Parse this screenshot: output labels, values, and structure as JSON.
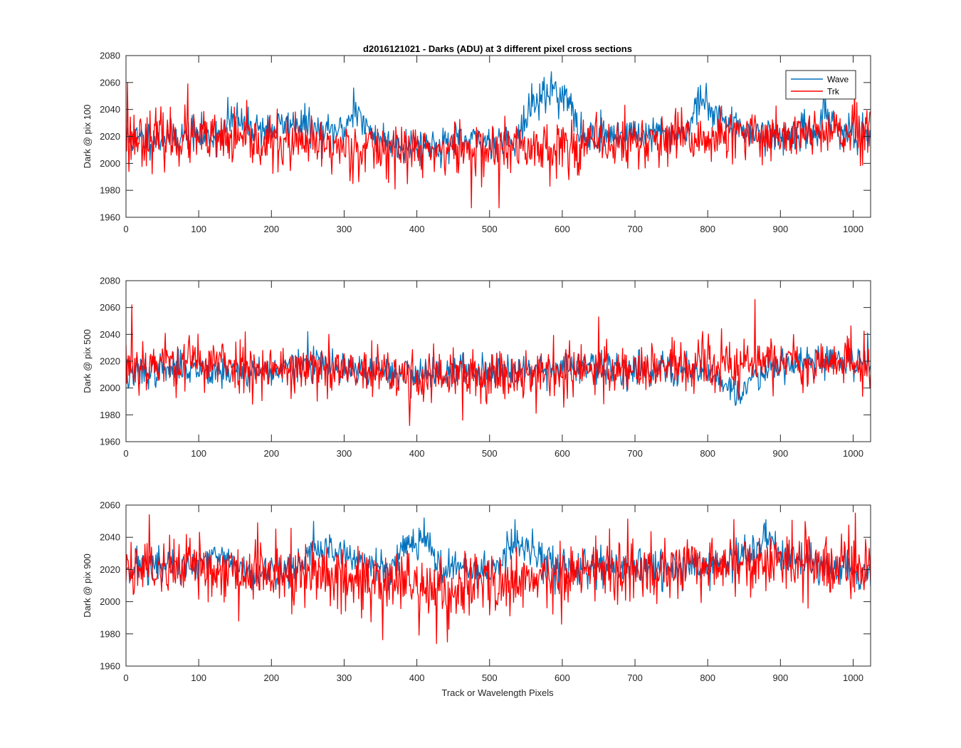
{
  "figure": {
    "title": "d2016121021 - Darks (ADU) at 3 different pixel cross sections",
    "xlabel": "Track or Wavelength Pixels"
  },
  "colors": {
    "wave": "#0072BD",
    "trk": "#FF0000",
    "axis": "#262626",
    "background": "#ffffff"
  },
  "chart_data": [
    {
      "type": "line",
      "title": "d2016121021 - Darks (ADU) at 3 different pixel cross sections",
      "ylabel": "Dark @ pix 100",
      "xlabel": "",
      "xlim": [
        0,
        1024
      ],
      "ylim": [
        1960,
        2080
      ],
      "xticks": [
        0,
        100,
        200,
        300,
        400,
        500,
        600,
        700,
        800,
        900,
        1000
      ],
      "yticks": [
        1960,
        1980,
        2000,
        2020,
        2040,
        2060,
        2080
      ],
      "grid": false,
      "legend": {
        "position": "top-right",
        "entries": [
          "Wave",
          "Trk"
        ]
      },
      "series": [
        {
          "name": "Wave",
          "color": "#0072BD",
          "noise": 6.5,
          "seed": 11,
          "baseline": [
            [
              0,
              2018
            ],
            [
              130,
              2021
            ],
            [
              150,
              2033
            ],
            [
              170,
              2027
            ],
            [
              200,
              2026
            ],
            [
              240,
              2030
            ],
            [
              270,
              2022
            ],
            [
              300,
              2025
            ],
            [
              315,
              2042
            ],
            [
              330,
              2025
            ],
            [
              360,
              2016
            ],
            [
              400,
              2013
            ],
            [
              480,
              2016
            ],
            [
              540,
              2020
            ],
            [
              560,
              2045
            ],
            [
              590,
              2055
            ],
            [
              610,
              2045
            ],
            [
              625,
              2020
            ],
            [
              700,
              2022
            ],
            [
              770,
              2022
            ],
            [
              785,
              2045
            ],
            [
              810,
              2040
            ],
            [
              830,
              2028
            ],
            [
              900,
              2020
            ],
            [
              950,
              2023
            ],
            [
              960,
              2040
            ],
            [
              980,
              2025
            ],
            [
              1024,
              2015
            ]
          ],
          "extremes": [
            [
              0,
              2025
            ],
            [
              140,
              2049
            ],
            [
              313,
              2056
            ],
            [
              585,
              2068
            ],
            [
              790,
              2058
            ],
            [
              960,
              2055
            ]
          ]
        },
        {
          "name": "Trk",
          "color": "#FF0000",
          "noise": 10,
          "seed": 23,
          "baseline": [
            [
              0,
              2020
            ],
            [
              100,
              2018
            ],
            [
              200,
              2015
            ],
            [
              300,
              2012
            ],
            [
              400,
              2010
            ],
            [
              500,
              2010
            ],
            [
              600,
              2013
            ],
            [
              700,
              2016
            ],
            [
              800,
              2018
            ],
            [
              900,
              2022
            ],
            [
              1024,
              2022
            ]
          ],
          "extremes": [
            [
              2,
              2060
            ],
            [
              4,
              1994
            ],
            [
              85,
              2059
            ],
            [
              475,
              1967
            ],
            [
              513,
              1967
            ],
            [
              1023,
              2038
            ]
          ]
        }
      ]
    },
    {
      "type": "line",
      "ylabel": "Dark @ pix 500",
      "xlabel": "",
      "xlim": [
        0,
        1024
      ],
      "ylim": [
        1960,
        2080
      ],
      "xticks": [
        0,
        100,
        200,
        300,
        400,
        500,
        600,
        700,
        800,
        900,
        1000
      ],
      "yticks": [
        1960,
        1980,
        2000,
        2020,
        2040,
        2060,
        2080
      ],
      "grid": false,
      "series": [
        {
          "name": "Wave",
          "color": "#0072BD",
          "noise": 6,
          "seed": 37,
          "baseline": [
            [
              0,
              2010
            ],
            [
              80,
              2015
            ],
            [
              150,
              2012
            ],
            [
              200,
              2013
            ],
            [
              260,
              2018
            ],
            [
              300,
              2013
            ],
            [
              400,
              2011
            ],
            [
              500,
              2014
            ],
            [
              600,
              2015
            ],
            [
              700,
              2015
            ],
            [
              800,
              2013
            ],
            [
              830,
              2002
            ],
            [
              845,
              1992
            ],
            [
              860,
              2008
            ],
            [
              900,
              2020
            ],
            [
              1024,
              2020
            ]
          ],
          "extremes": [
            [
              3,
              2000
            ],
            [
              250,
              2042
            ],
            [
              838,
              1987
            ],
            [
              1020,
              2041
            ]
          ]
        },
        {
          "name": "Trk",
          "color": "#FF0000",
          "noise": 10,
          "seed": 53,
          "baseline": [
            [
              0,
              2018
            ],
            [
              100,
              2020
            ],
            [
              200,
              2015
            ],
            [
              300,
              2012
            ],
            [
              400,
              2008
            ],
            [
              500,
              2010
            ],
            [
              600,
              2012
            ],
            [
              700,
              2015
            ],
            [
              800,
              2016
            ],
            [
              900,
              2020
            ],
            [
              1024,
              2018
            ]
          ],
          "extremes": [
            [
              8,
              2062
            ],
            [
              390,
              1972
            ],
            [
              463,
              1976
            ],
            [
              650,
              2053
            ],
            [
              865,
              2066
            ]
          ]
        }
      ]
    },
    {
      "type": "line",
      "ylabel": "Dark @ pix 900",
      "xlabel": "Track or Wavelength Pixels",
      "xlim": [
        0,
        1024
      ],
      "ylim": [
        1960,
        2060
      ],
      "xticks": [
        0,
        100,
        200,
        300,
        400,
        500,
        600,
        700,
        800,
        900,
        1000
      ],
      "yticks": [
        1960,
        1980,
        2000,
        2020,
        2040,
        2060
      ],
      "grid": false,
      "series": [
        {
          "name": "Wave",
          "color": "#0072BD",
          "noise": 5.5,
          "seed": 71,
          "baseline": [
            [
              0,
              2022
            ],
            [
              100,
              2022
            ],
            [
              130,
              2028
            ],
            [
              160,
              2020
            ],
            [
              200,
              2018
            ],
            [
              240,
              2022
            ],
            [
              260,
              2033
            ],
            [
              300,
              2030
            ],
            [
              320,
              2025
            ],
            [
              360,
              2020
            ],
            [
              390,
              2038
            ],
            [
              410,
              2040
            ],
            [
              430,
              2022
            ],
            [
              500,
              2018
            ],
            [
              530,
              2035
            ],
            [
              560,
              2030
            ],
            [
              590,
              2022
            ],
            [
              700,
              2020
            ],
            [
              800,
              2022
            ],
            [
              860,
              2030
            ],
            [
              880,
              2040
            ],
            [
              900,
              2030
            ],
            [
              940,
              2022
            ],
            [
              1024,
              2018
            ]
          ],
          "extremes": [
            [
              258,
              2050
            ],
            [
              410,
              2052
            ],
            [
              535,
              2051
            ],
            [
              880,
              2051
            ]
          ]
        },
        {
          "name": "Trk",
          "color": "#FF0000",
          "noise": 10,
          "seed": 89,
          "baseline": [
            [
              0,
              2022
            ],
            [
              100,
              2022
            ],
            [
              200,
              2018
            ],
            [
              300,
              2015
            ],
            [
              400,
              2010
            ],
            [
              440,
              2005
            ],
            [
              500,
              2012
            ],
            [
              600,
              2016
            ],
            [
              700,
              2020
            ],
            [
              800,
              2023
            ],
            [
              900,
              2024
            ],
            [
              1024,
              2022
            ]
          ],
          "extremes": [
            [
              32,
              2054
            ],
            [
              155,
              1988
            ],
            [
              427,
              1974
            ],
            [
              442,
              1975
            ],
            [
              1003,
              2055
            ]
          ]
        }
      ]
    }
  ]
}
